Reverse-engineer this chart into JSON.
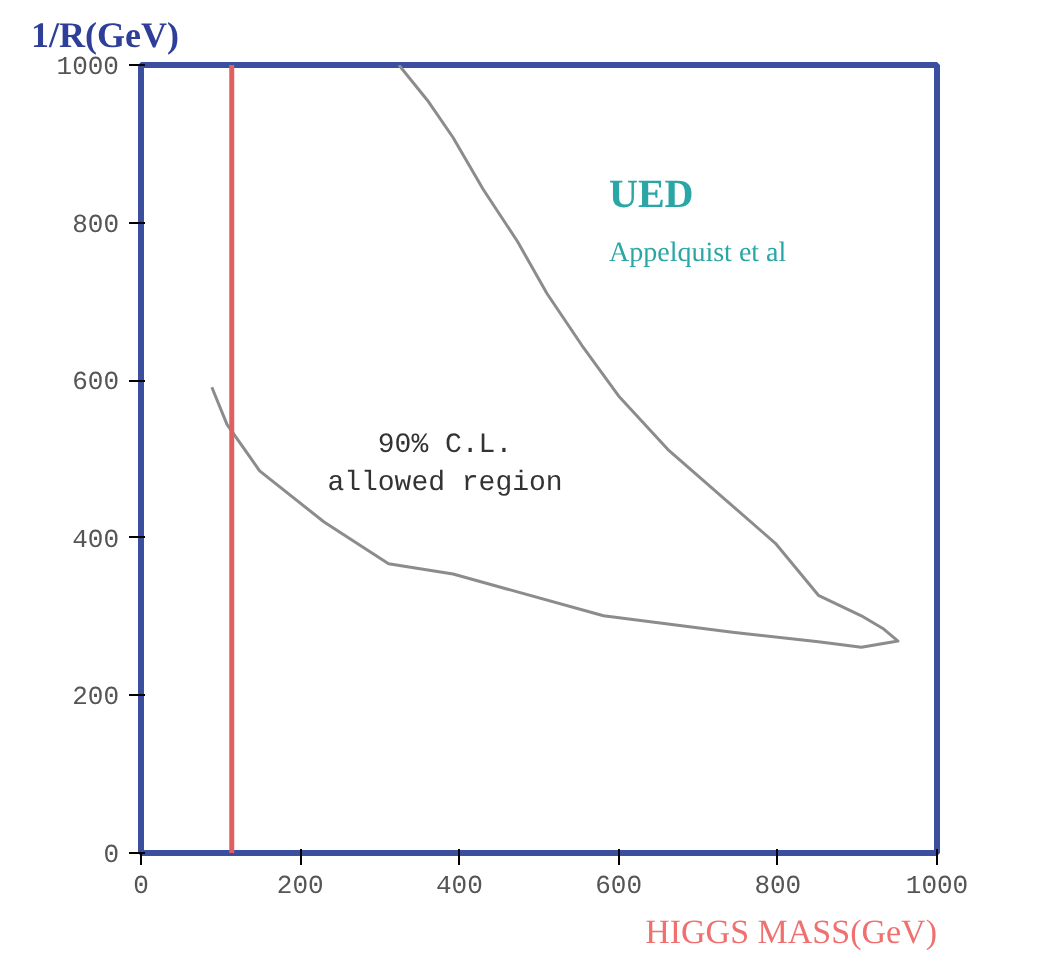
{
  "chart_data": {
    "type": "line",
    "xlabel": "HIGGS MASS(GeV)",
    "ylabel": "1/R(GeV)",
    "xlim": [
      0,
      1000
    ],
    "ylim": [
      0,
      1000
    ],
    "xticks": [
      0,
      200,
      400,
      600,
      800,
      1000
    ],
    "yticks": [
      0,
      200,
      400,
      600,
      800,
      1000
    ],
    "grid": false,
    "marker": "none",
    "line_style": "solid",
    "series": [
      {
        "color": "#8c8c8c",
        "x": [
          89,
          108,
          149,
          230,
          311,
          392,
          581,
          743,
          851,
          905,
          951,
          932,
          905,
          851,
          797,
          730,
          662,
          600,
          554,
          510,
          473,
          430,
          392,
          360,
          324
        ],
        "values": [
          591,
          544,
          485,
          420,
          367,
          354,
          301,
          280,
          268,
          261,
          269,
          285,
          301,
          327,
          393,
          452,
          512,
          580,
          644,
          710,
          776,
          842,
          908,
          955,
          1000
        ]
      }
    ],
    "ref_lines": [
      {
        "axis": "x",
        "value": 114,
        "color": "#e06060",
        "line_style": "solid"
      }
    ],
    "annotations": [
      "UED",
      "Appelquist et al",
      "90% C.L.\nallowed region"
    ]
  }
}
